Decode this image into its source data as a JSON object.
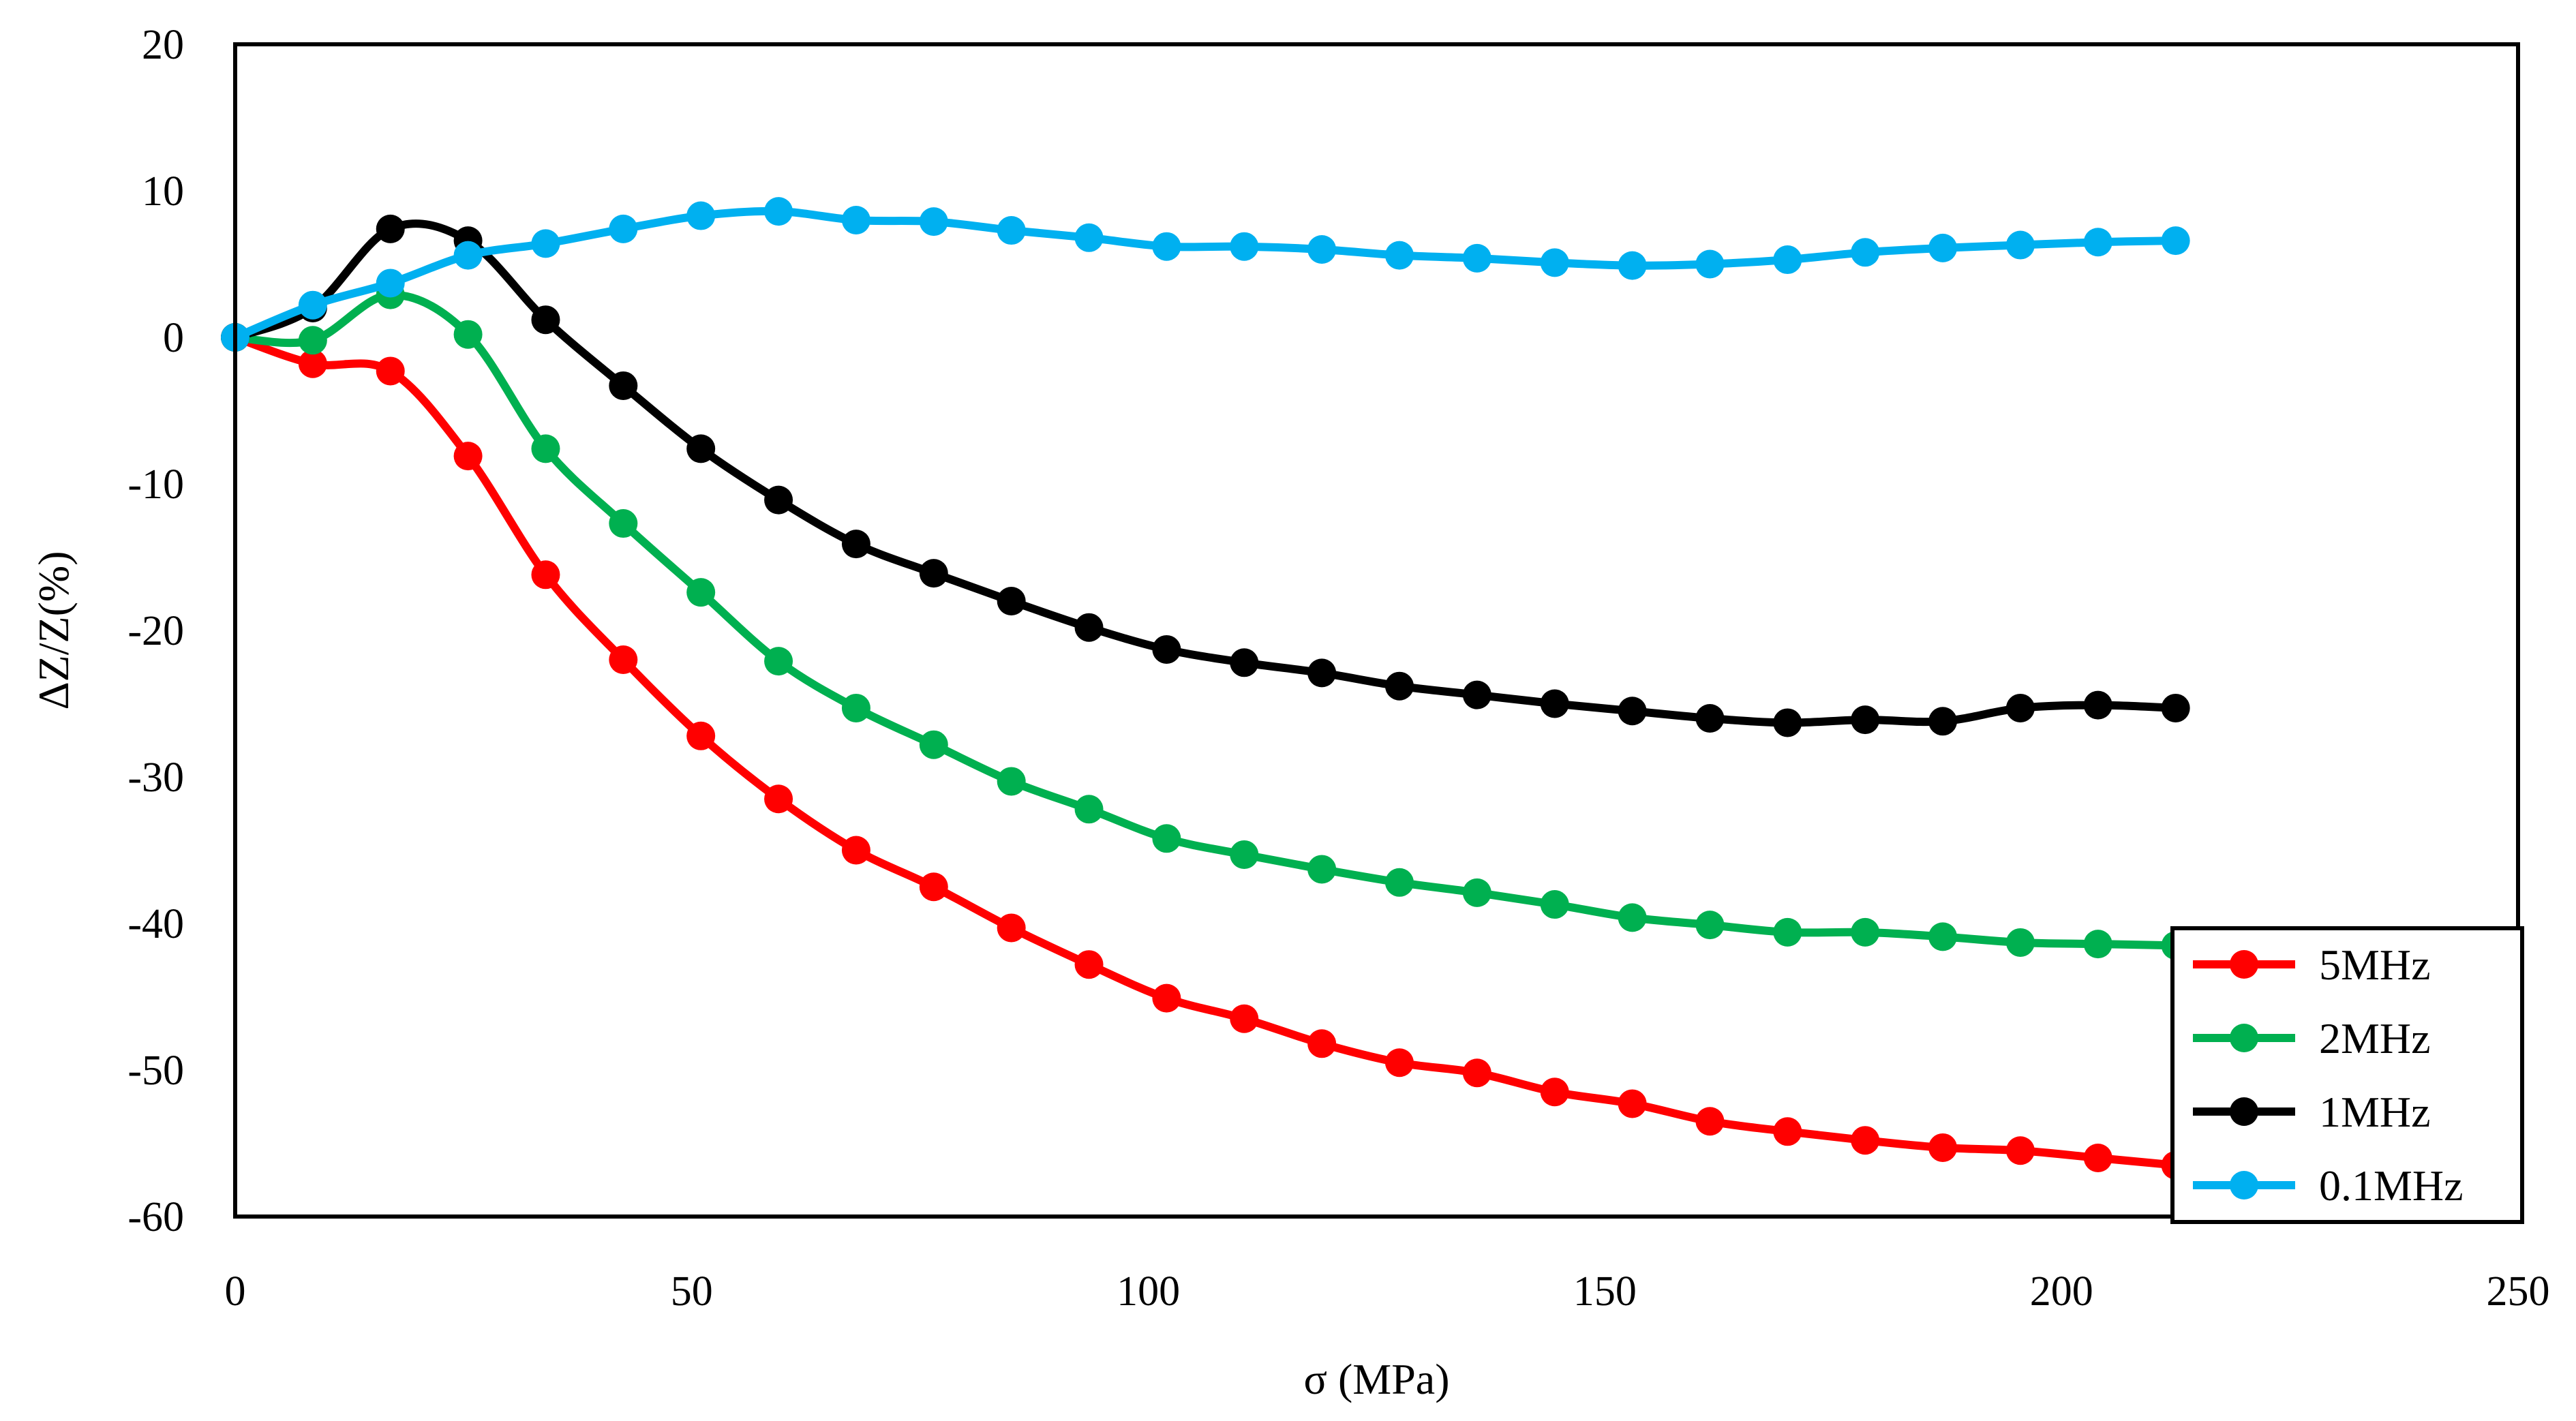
{
  "chart_data": {
    "type": "line",
    "title": "",
    "xlabel": "σ (MPa)",
    "ylabel": "ΔZ/Z(%)",
    "xlim": [
      0,
      250
    ],
    "ylim": [
      -60,
      20
    ],
    "xticks": [
      0,
      50,
      100,
      150,
      200,
      250
    ],
    "yticks": [
      20,
      10,
      0,
      -10,
      -20,
      -30,
      -40,
      -50,
      -60
    ],
    "grid": false,
    "legend_position": "bottom-right",
    "x": [
      0,
      8.5,
      17,
      25.5,
      34,
      42.5,
      51,
      59.5,
      68,
      76.5,
      85,
      93.5,
      102,
      110.5,
      119,
      127.5,
      136,
      144.5,
      153,
      161.5,
      170,
      178.5,
      187,
      195.5,
      204,
      212.5
    ],
    "series": [
      {
        "name": "5MHz",
        "color": "#ff0000",
        "values": [
          0,
          -1.8,
          -2.3,
          -8.1,
          -16.2,
          -22.0,
          -27.2,
          -31.5,
          -35.0,
          -37.5,
          -40.3,
          -42.8,
          -45.1,
          -46.5,
          -48.2,
          -49.5,
          -50.2,
          -51.5,
          -52.3,
          -53.5,
          -54.2,
          -54.8,
          -55.3,
          -55.5,
          -56.0,
          -56.5
        ]
      },
      {
        "name": "2MHz",
        "color": "#00b050",
        "values": [
          0,
          -0.2,
          2.9,
          0.2,
          -7.6,
          -12.7,
          -17.4,
          -22.1,
          -25.3,
          -27.8,
          -30.3,
          -32.2,
          -34.2,
          -35.3,
          -36.3,
          -37.2,
          -37.9,
          -38.7,
          -39.6,
          -40.1,
          -40.6,
          -40.6,
          -40.9,
          -41.3,
          -41.4,
          -41.5
        ]
      },
      {
        "name": "1MHz",
        "color": "#000000",
        "values": [
          0,
          2.0,
          7.4,
          6.6,
          1.2,
          -3.3,
          -7.6,
          -11.1,
          -14.1,
          -16.1,
          -18.0,
          -19.8,
          -21.3,
          -22.2,
          -22.9,
          -23.8,
          -24.4,
          -25.0,
          -25.5,
          -26.0,
          -26.3,
          -26.1,
          -26.2,
          -25.3,
          -25.1,
          -25.3
        ]
      },
      {
        "name": "0.1MHz",
        "color": "#00b0f0",
        "values": [
          0,
          2.2,
          3.7,
          5.6,
          6.4,
          7.4,
          8.3,
          8.6,
          8.0,
          7.9,
          7.3,
          6.8,
          6.2,
          6.2,
          6.0,
          5.6,
          5.4,
          5.1,
          4.9,
          5.0,
          5.3,
          5.8,
          6.1,
          6.3,
          6.5,
          6.6
        ]
      }
    ]
  }
}
